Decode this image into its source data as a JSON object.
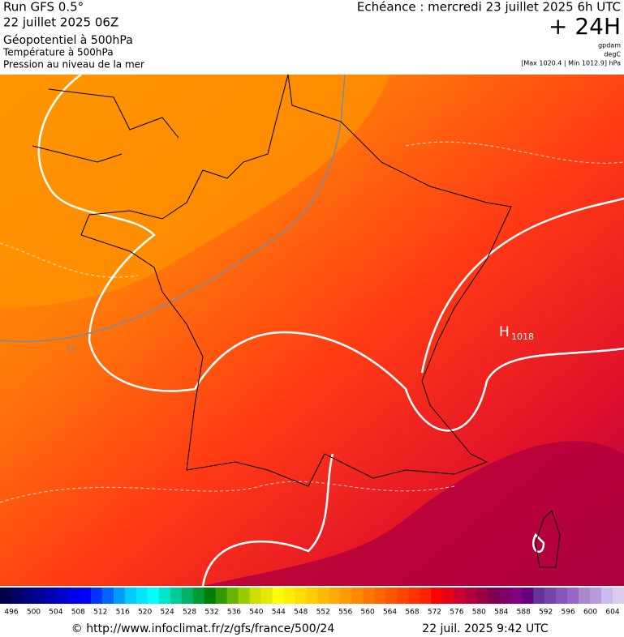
{
  "header": {
    "left": [
      "Run GFS 0.5°",
      "22 juillet 2025 06Z",
      "Géopotentiel à 500hPa",
      "Température à 500hPa",
      "Pression au niveau de la mer"
    ],
    "forecast": "Echéance : mercredi 23 juillet 2025 6h UTC",
    "lead": "+ 24H",
    "units": [
      "gpdam",
      "degC",
      "[Max 1020.4 | Min 1012.9] hPa"
    ]
  },
  "map": {
    "high_letter": "H",
    "high_value": "1018",
    "isobar_label": "16"
  },
  "colorbar": {
    "ticks": [
      496,
      500,
      504,
      508,
      512,
      516,
      520,
      524,
      528,
      532,
      536,
      540,
      544,
      548,
      552,
      556,
      560,
      564,
      568,
      572,
      576,
      580,
      584,
      588,
      592,
      596,
      600,
      604
    ],
    "colors": [
      "#00004c",
      "#000066",
      "#000080",
      "#000099",
      "#0000b3",
      "#0000cc",
      "#0000e6",
      "#0000ff",
      "#0033ff",
      "#0066ff",
      "#0099ff",
      "#00ccff",
      "#00e6ff",
      "#00ffff",
      "#00e6cc",
      "#00cc99",
      "#00b366",
      "#009933",
      "#008000",
      "#339900",
      "#66b300",
      "#99cc00",
      "#ccdd00",
      "#e6e600",
      "#ffff00",
      "#ffee00",
      "#ffdd00",
      "#ffcc00",
      "#ffbb00",
      "#ffaa00",
      "#ff9900",
      "#ff8800",
      "#ff7700",
      "#ff6600",
      "#ff5500",
      "#ff4400",
      "#ff3300",
      "#ff2200",
      "#ff0000",
      "#e6001a",
      "#cc0033",
      "#b3003c",
      "#990044",
      "#80004d",
      "#800066",
      "#800080",
      "#660080",
      "#663399",
      "#7744aa",
      "#8855bb",
      "#9966cc",
      "#aa88cc",
      "#bb99dd",
      "#ccbbee",
      "#ddccee"
    ]
  },
  "footer": {
    "source": "© http://www.infoclimat.fr/z/gfs/france/500/24",
    "date": "22 juil. 2025  9:42 UTC"
  }
}
